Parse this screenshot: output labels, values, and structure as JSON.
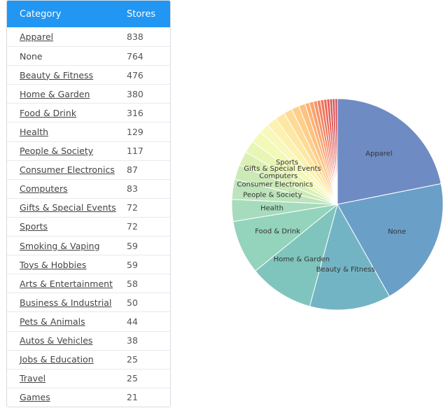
{
  "table": {
    "header": {
      "category": "Category",
      "stores": "Stores"
    },
    "rows": [
      {
        "category": "Apparel",
        "stores": "838",
        "link": true
      },
      {
        "category": "None",
        "stores": "764",
        "link": false
      },
      {
        "category": "Beauty & Fitness",
        "stores": "476",
        "link": true
      },
      {
        "category": "Home & Garden",
        "stores": "380",
        "link": true
      },
      {
        "category": "Food & Drink",
        "stores": "316",
        "link": true
      },
      {
        "category": "Health",
        "stores": "129",
        "link": true
      },
      {
        "category": "People & Society",
        "stores": "117",
        "link": true
      },
      {
        "category": "Consumer Electronics",
        "stores": "87",
        "link": true
      },
      {
        "category": "Computers",
        "stores": "83",
        "link": true
      },
      {
        "category": "Gifts & Special Events",
        "stores": "72",
        "link": true
      },
      {
        "category": "Sports",
        "stores": "72",
        "link": true
      },
      {
        "category": "Smoking & Vaping",
        "stores": "59",
        "link": true
      },
      {
        "category": "Toys & Hobbies",
        "stores": "59",
        "link": true
      },
      {
        "category": "Arts & Entertainment",
        "stores": "58",
        "link": true
      },
      {
        "category": "Business & Industrial",
        "stores": "50",
        "link": true
      },
      {
        "category": "Pets & Animals",
        "stores": "44",
        "link": true
      },
      {
        "category": "Autos & Vehicles",
        "stores": "38",
        "link": true
      },
      {
        "category": "Jobs & Education",
        "stores": "25",
        "link": true
      },
      {
        "category": "Travel",
        "stores": "25",
        "link": true
      },
      {
        "category": "Games",
        "stores": "21",
        "link": true
      }
    ]
  },
  "chart_data": {
    "type": "pie",
    "categories": [
      "Apparel",
      "None",
      "Beauty & Fitness",
      "Home & Garden",
      "Food & Drink",
      "Health",
      "People & Society",
      "Consumer Electronics",
      "Computers",
      "Gifts & Special Events",
      "Sports",
      "Smoking & Vaping",
      "Toys & Hobbies",
      "Arts & Entertainment",
      "Business & Industrial",
      "Pets & Animals",
      "Autos & Vehicles",
      "Jobs & Education",
      "Travel",
      "Games",
      "",
      "",
      "",
      "",
      "",
      "",
      ""
    ],
    "values": [
      838,
      764,
      476,
      380,
      316,
      129,
      117,
      87,
      83,
      72,
      72,
      59,
      59,
      58,
      50,
      44,
      38,
      25,
      25,
      21,
      20,
      19,
      18,
      17,
      16,
      15,
      14
    ],
    "labeled": [
      true,
      true,
      true,
      true,
      true,
      true,
      true,
      true,
      true,
      true,
      true,
      false,
      false,
      false,
      false,
      false,
      false,
      false,
      false,
      false,
      false,
      false,
      false,
      false,
      false,
      false,
      false
    ],
    "colors": [
      "#6e8bc3",
      "#6a9fc8",
      "#73b4c4",
      "#7fc5bd",
      "#94d3bc",
      "#a7dbbd",
      "#bde4bb",
      "#cceab8",
      "#dcf0b6",
      "#e9f5b4",
      "#f3f9b7",
      "#f8f8bc",
      "#fcf1ae",
      "#fde8a3",
      "#fddb96",
      "#fdcf8a",
      "#fcc280",
      "#fbb377",
      "#faa36f",
      "#f79368",
      "#f48462",
      "#f0765d",
      "#eb6a5a",
      "#e55f58",
      "#de5657",
      "#d64e57",
      "#ce4757"
    ]
  }
}
